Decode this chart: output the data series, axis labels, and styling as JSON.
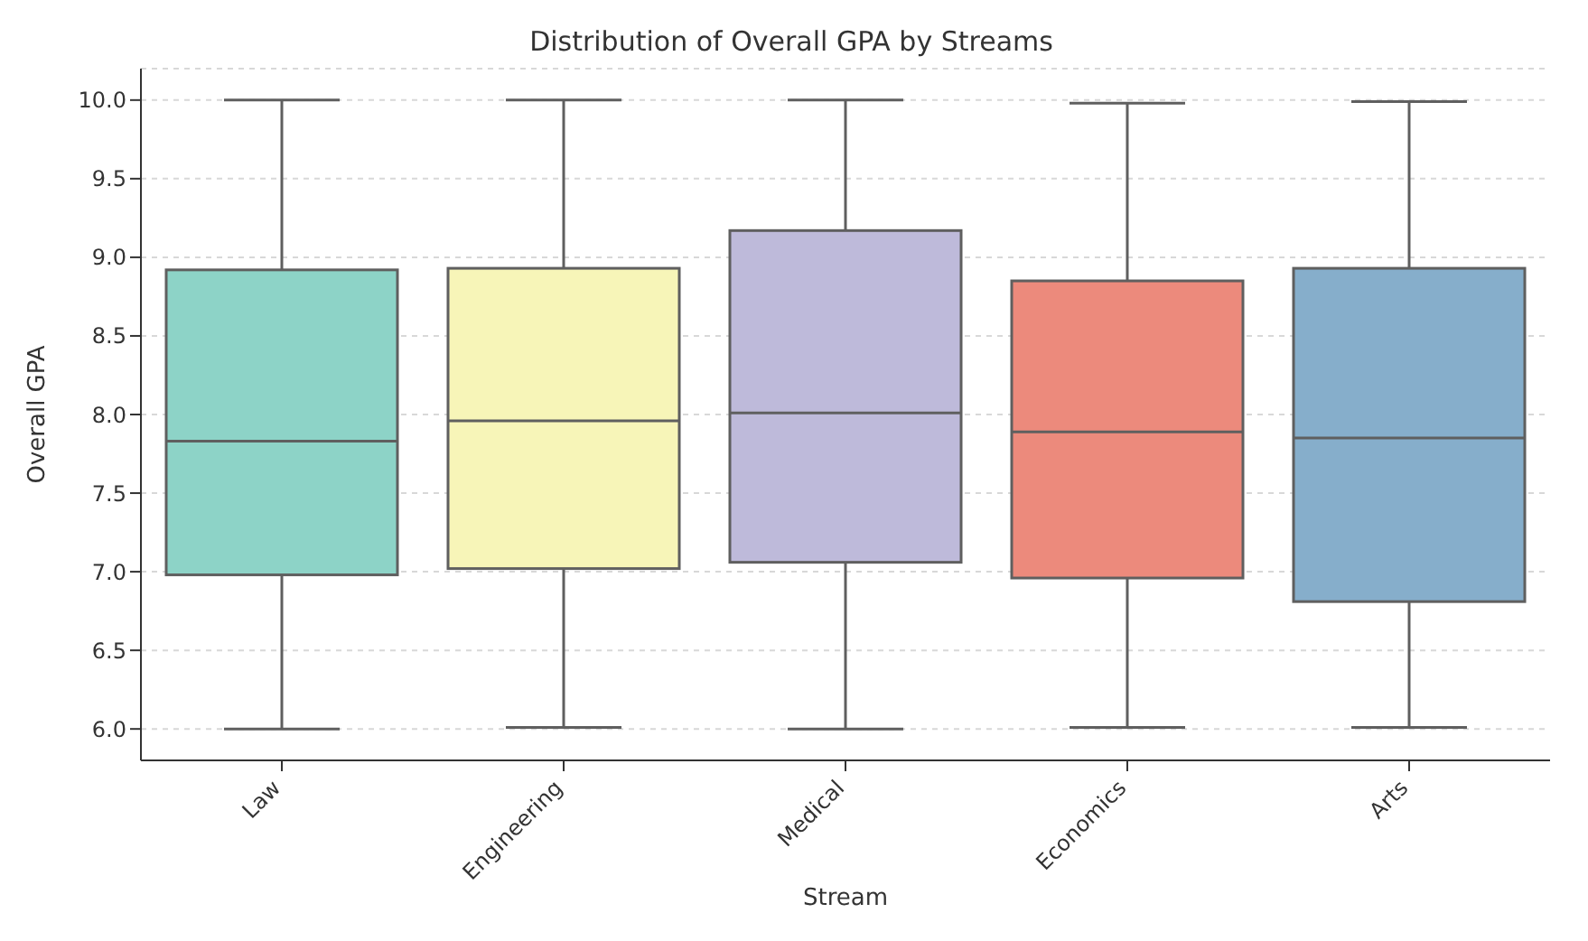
{
  "chart_data": {
    "type": "box",
    "title": "Distribution of Overall GPA by Streams",
    "xlabel": "Stream",
    "ylabel": "Overall GPA",
    "categories": [
      "Law",
      "Engineering",
      "Medical",
      "Economics",
      "Arts"
    ],
    "colors": [
      "#8dd3c7",
      "#f7f5b8",
      "#bebada",
      "#ec8a7c",
      "#86aecb"
    ],
    "boxes": [
      {
        "low": 6.0,
        "q1": 6.98,
        "median": 7.83,
        "q3": 8.92,
        "high": 10.0
      },
      {
        "low": 6.01,
        "q1": 7.02,
        "median": 7.96,
        "q3": 8.93,
        "high": 10.0
      },
      {
        "low": 6.0,
        "q1": 7.06,
        "median": 8.01,
        "q3": 9.17,
        "high": 10.0
      },
      {
        "low": 6.01,
        "q1": 6.96,
        "median": 7.89,
        "q3": 8.85,
        "high": 9.98
      },
      {
        "low": 6.01,
        "q1": 6.81,
        "median": 7.85,
        "q3": 8.93,
        "high": 9.99
      }
    ],
    "ylim": [
      5.8,
      10.2
    ],
    "yticks": [
      {
        "value": 6,
        "label": "6.0"
      },
      {
        "value": 6.5,
        "label": "6.5"
      },
      {
        "value": 7,
        "label": "7.0"
      },
      {
        "value": 7.5,
        "label": "7.5"
      },
      {
        "value": 8,
        "label": "8.0"
      },
      {
        "value": 8.5,
        "label": "8.5"
      },
      {
        "value": 9,
        "label": "9.0"
      },
      {
        "value": 9.5,
        "label": "9.5"
      },
      {
        "value": 10,
        "label": "10.0"
      }
    ],
    "grid": "y"
  }
}
